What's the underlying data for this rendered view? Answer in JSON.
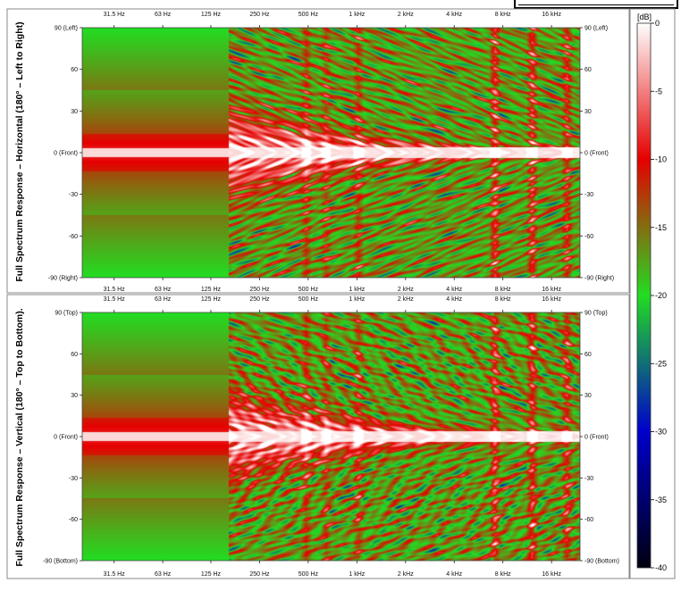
{
  "chart_data": [
    {
      "type": "heatmap",
      "panel": "top",
      "side_title": "Full Spectrum Response – Horizontal (180° – Left to Right)",
      "x_scale": "log",
      "x_ticks": [
        {
          "label": "31.5 Hz",
          "value": 31.5
        },
        {
          "label": "63 Hz",
          "value": 63
        },
        {
          "label": "125 Hz",
          "value": 125
        },
        {
          "label": "250 Hz",
          "value": 250
        },
        {
          "label": "500 Hz",
          "value": 500
        },
        {
          "label": "1 kHz",
          "value": 1000
        },
        {
          "label": "2 kHz",
          "value": 2000
        },
        {
          "label": "4 kHz",
          "value": 4000
        },
        {
          "label": "8 kHz",
          "value": 8000
        },
        {
          "label": "16 kHz",
          "value": 16000
        }
      ],
      "xlim": [
        20,
        24000
      ],
      "y_ticks": [
        {
          "label": "90 (Left)",
          "value": 90
        },
        {
          "label": "60",
          "value": 60
        },
        {
          "label": "30",
          "value": 30
        },
        {
          "label": "0 (Front)",
          "value": 0
        },
        {
          "label": "-30",
          "value": -30
        },
        {
          "label": "-60",
          "value": -60
        },
        {
          "label": "-90 (Right)",
          "value": -90
        }
      ],
      "ylim": [
        -90,
        90
      ]
    },
    {
      "type": "heatmap",
      "panel": "bottom",
      "side_title": "Full Spectrum Response – Vertical (180° – Top to Bottom).",
      "x_scale": "log",
      "x_ticks": [
        {
          "label": "31.5 Hz",
          "value": 31.5
        },
        {
          "label": "63 Hz",
          "value": 63
        },
        {
          "label": "125 Hz",
          "value": 125
        },
        {
          "label": "250 Hz",
          "value": 250
        },
        {
          "label": "500 Hz",
          "value": 500
        },
        {
          "label": "1 kHz",
          "value": 1000
        },
        {
          "label": "2 kHz",
          "value": 2000
        },
        {
          "label": "4 kHz",
          "value": 4000
        },
        {
          "label": "8 kHz",
          "value": 8000
        },
        {
          "label": "16 kHz",
          "value": 16000
        }
      ],
      "xlim": [
        20,
        24000
      ],
      "y_ticks": [
        {
          "label": "90 (Top)",
          "value": 90
        },
        {
          "label": "60",
          "value": 60
        },
        {
          "label": "30",
          "value": 30
        },
        {
          "label": "0 (Front)",
          "value": 0
        },
        {
          "label": "-30",
          "value": -30
        },
        {
          "label": "-60",
          "value": -60
        },
        {
          "label": "-90 (Bottom)",
          "value": -90
        }
      ],
      "ylim": [
        -90,
        90
      ]
    }
  ],
  "colorbar": {
    "unit_label": "[dB]",
    "range": [
      -40,
      0
    ],
    "ticks": [
      {
        "label": "0",
        "value": 0
      },
      {
        "label": "-5",
        "value": -5
      },
      {
        "label": "-10",
        "value": -10
      },
      {
        "label": "-15",
        "value": -15
      },
      {
        "label": "-20",
        "value": -20
      },
      {
        "label": "-25",
        "value": -25
      },
      {
        "label": "-30",
        "value": -30
      },
      {
        "label": "-35",
        "value": -35
      },
      {
        "label": "-40",
        "value": -40
      }
    ],
    "stops": [
      {
        "value": 0,
        "color": "#ffffff"
      },
      {
        "value": -10,
        "color": "#e60000"
      },
      {
        "value": -20,
        "color": "#22dd22"
      },
      {
        "value": -30,
        "color": "#0000cc"
      },
      {
        "value": -40,
        "color": "#000010"
      }
    ]
  }
}
